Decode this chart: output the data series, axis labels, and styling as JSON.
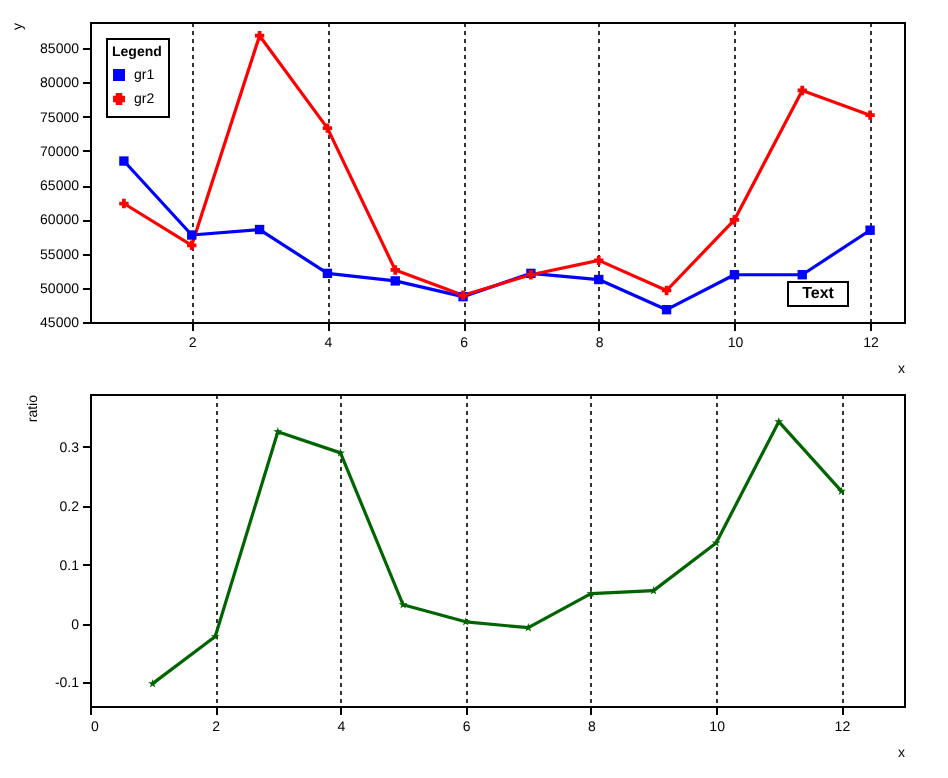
{
  "chart_data": [
    {
      "type": "line",
      "xlabel": "x",
      "ylabel": "y",
      "legend_title": "Legend",
      "legend": "top left",
      "grid": "x",
      "annotations": [
        "Text"
      ],
      "x": [
        1,
        2,
        3,
        4,
        5,
        6,
        7,
        8,
        9,
        10,
        11,
        12
      ],
      "xlim": [
        0.5,
        12.5
      ],
      "xticks": [
        2,
        4,
        6,
        8,
        10,
        12
      ],
      "ylim": [
        45000,
        88800
      ],
      "yticks": [
        45000,
        50000,
        55000,
        60000,
        65000,
        70000,
        75000,
        80000,
        85000
      ],
      "series": [
        {
          "name": "gr1",
          "color": "#0000ff",
          "marker": "square",
          "values": [
            68500,
            57700,
            58500,
            52100,
            51000,
            48700,
            52100,
            51200,
            46800,
            51900,
            51900,
            58400
          ]
        },
        {
          "name": "gr2",
          "color": "#ff0000",
          "marker": "cross",
          "values": [
            62300,
            56200,
            86800,
            73300,
            52600,
            48900,
            51900,
            54000,
            49600,
            59900,
            78800,
            75200
          ]
        }
      ]
    },
    {
      "type": "line",
      "xlabel": "x",
      "ylabel": "ratio",
      "grid": "x",
      "x": [
        1,
        2,
        3,
        4,
        5,
        6,
        7,
        8,
        9,
        10,
        11,
        12
      ],
      "xlim": [
        0,
        13
      ],
      "xticks": [
        0,
        2,
        4,
        6,
        8,
        10,
        12
      ],
      "ylim": [
        -0.14,
        0.39
      ],
      "yticks": [
        -0.1,
        0,
        0.1,
        0.2,
        0.3
      ],
      "series": [
        {
          "color": "#006400",
          "marker": "star",
          "values": [
            -0.102,
            -0.022,
            0.326,
            0.29,
            0.032,
            0.003,
            -0.007,
            0.051,
            0.056,
            0.137,
            0.343,
            0.225
          ]
        }
      ]
    }
  ]
}
